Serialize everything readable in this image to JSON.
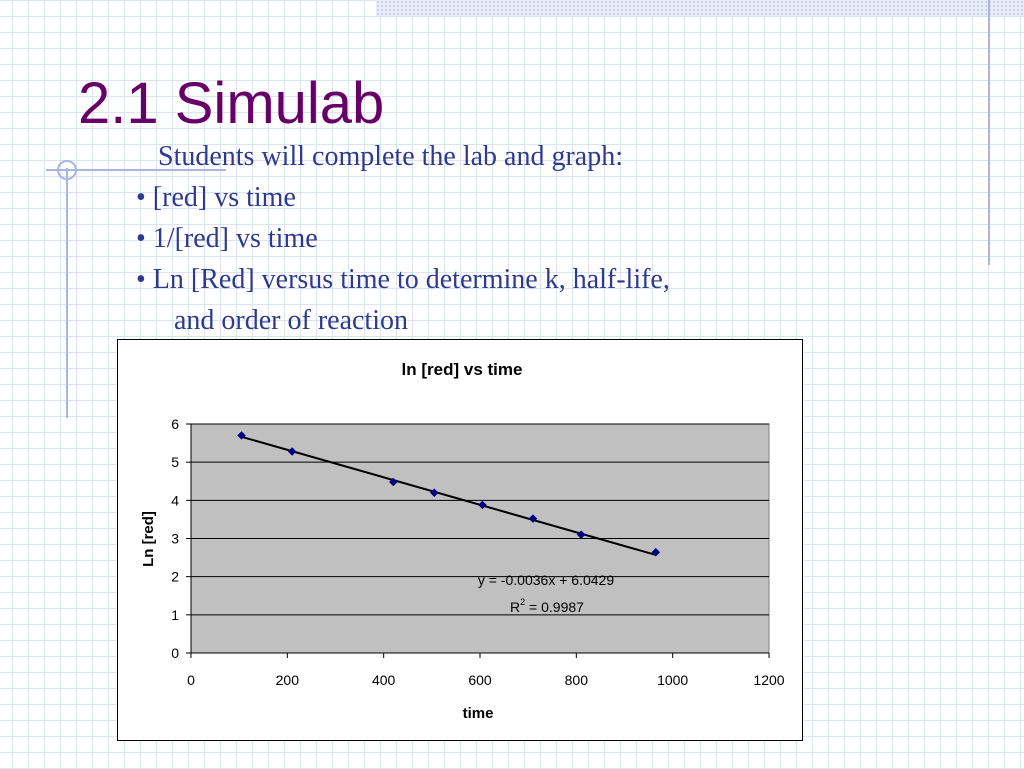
{
  "slide": {
    "title": "2.1 Simulab",
    "intro": "Students will complete the lab and graph:",
    "bullets": [
      "• [red] vs time",
      "• 1/[red] vs time",
      "• Ln [Red]  versus time to determine k, half-life,"
    ],
    "bullet_continuation": "and order of reaction"
  },
  "colors": {
    "title": "#660066",
    "body_text": "#2e3a8c",
    "plot_area": "#c0c0c0",
    "marker": "#000080",
    "trendline": "#000000"
  },
  "chart_data": {
    "type": "scatter",
    "title": "ln [red] vs time",
    "xlabel": "time",
    "ylabel": "Ln [red]",
    "xlim": [
      0,
      1200
    ],
    "ylim": [
      0,
      6
    ],
    "xticks": [
      0,
      200,
      400,
      600,
      800,
      1000,
      1200
    ],
    "yticks": [
      0,
      1,
      2,
      3,
      4,
      5,
      6
    ],
    "grid": "horizontal",
    "legend": "none",
    "series": [
      {
        "points": [
          {
            "x": 105,
            "y": 5.7
          },
          {
            "x": 210,
            "y": 5.28
          },
          {
            "x": 420,
            "y": 4.48
          },
          {
            "x": 505,
            "y": 4.2
          },
          {
            "x": 605,
            "y": 3.88
          },
          {
            "x": 710,
            "y": 3.52
          },
          {
            "x": 810,
            "y": 3.1
          },
          {
            "x": 965,
            "y": 2.64
          }
        ]
      }
    ],
    "trendline": {
      "slope": -0.0036,
      "intercept": 6.0429,
      "x_from": 105,
      "x_to": 965,
      "equation_label": "y = -0.0036x + 6.0429",
      "r2_base": "R",
      "r2_sup": "2",
      "r2_value": " = 0.9987"
    }
  }
}
